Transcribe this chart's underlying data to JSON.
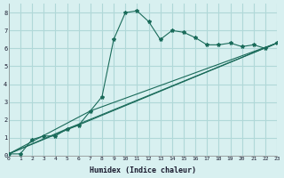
{
  "xlabel": "Humidex (Indice chaleur)",
  "bg_color": "#d8f0f0",
  "grid_color": "#b0d8d8",
  "line_color": "#1a6b5a",
  "xlim": [
    0,
    23
  ],
  "ylim": [
    0,
    8.5
  ],
  "xticks": [
    0,
    1,
    2,
    3,
    4,
    5,
    6,
    7,
    8,
    9,
    10,
    11,
    12,
    13,
    14,
    15,
    16,
    17,
    18,
    19,
    20,
    21,
    22,
    23
  ],
  "yticks": [
    0,
    1,
    2,
    3,
    4,
    5,
    6,
    7,
    8
  ],
  "series1_x": [
    0,
    1,
    2,
    3,
    4,
    5,
    6,
    7,
    8,
    9,
    10,
    11,
    12,
    13,
    14,
    15,
    16,
    17,
    18,
    19,
    20,
    21,
    22,
    23
  ],
  "series1_y": [
    0.1,
    0.1,
    0.9,
    1.1,
    1.1,
    1.5,
    1.7,
    2.5,
    3.3,
    6.5,
    8.0,
    8.1,
    7.5,
    6.5,
    7.0,
    6.9,
    6.6,
    6.2,
    6.2,
    6.3,
    6.1,
    6.2,
    6.0,
    6.3
  ],
  "series2_x": [
    0,
    23
  ],
  "series2_y": [
    0.1,
    6.3
  ],
  "series3_x": [
    0,
    5,
    23
  ],
  "series3_y": [
    0.1,
    1.5,
    6.3
  ],
  "series4_x": [
    0,
    7,
    23
  ],
  "series4_y": [
    0.1,
    2.5,
    6.3
  ]
}
